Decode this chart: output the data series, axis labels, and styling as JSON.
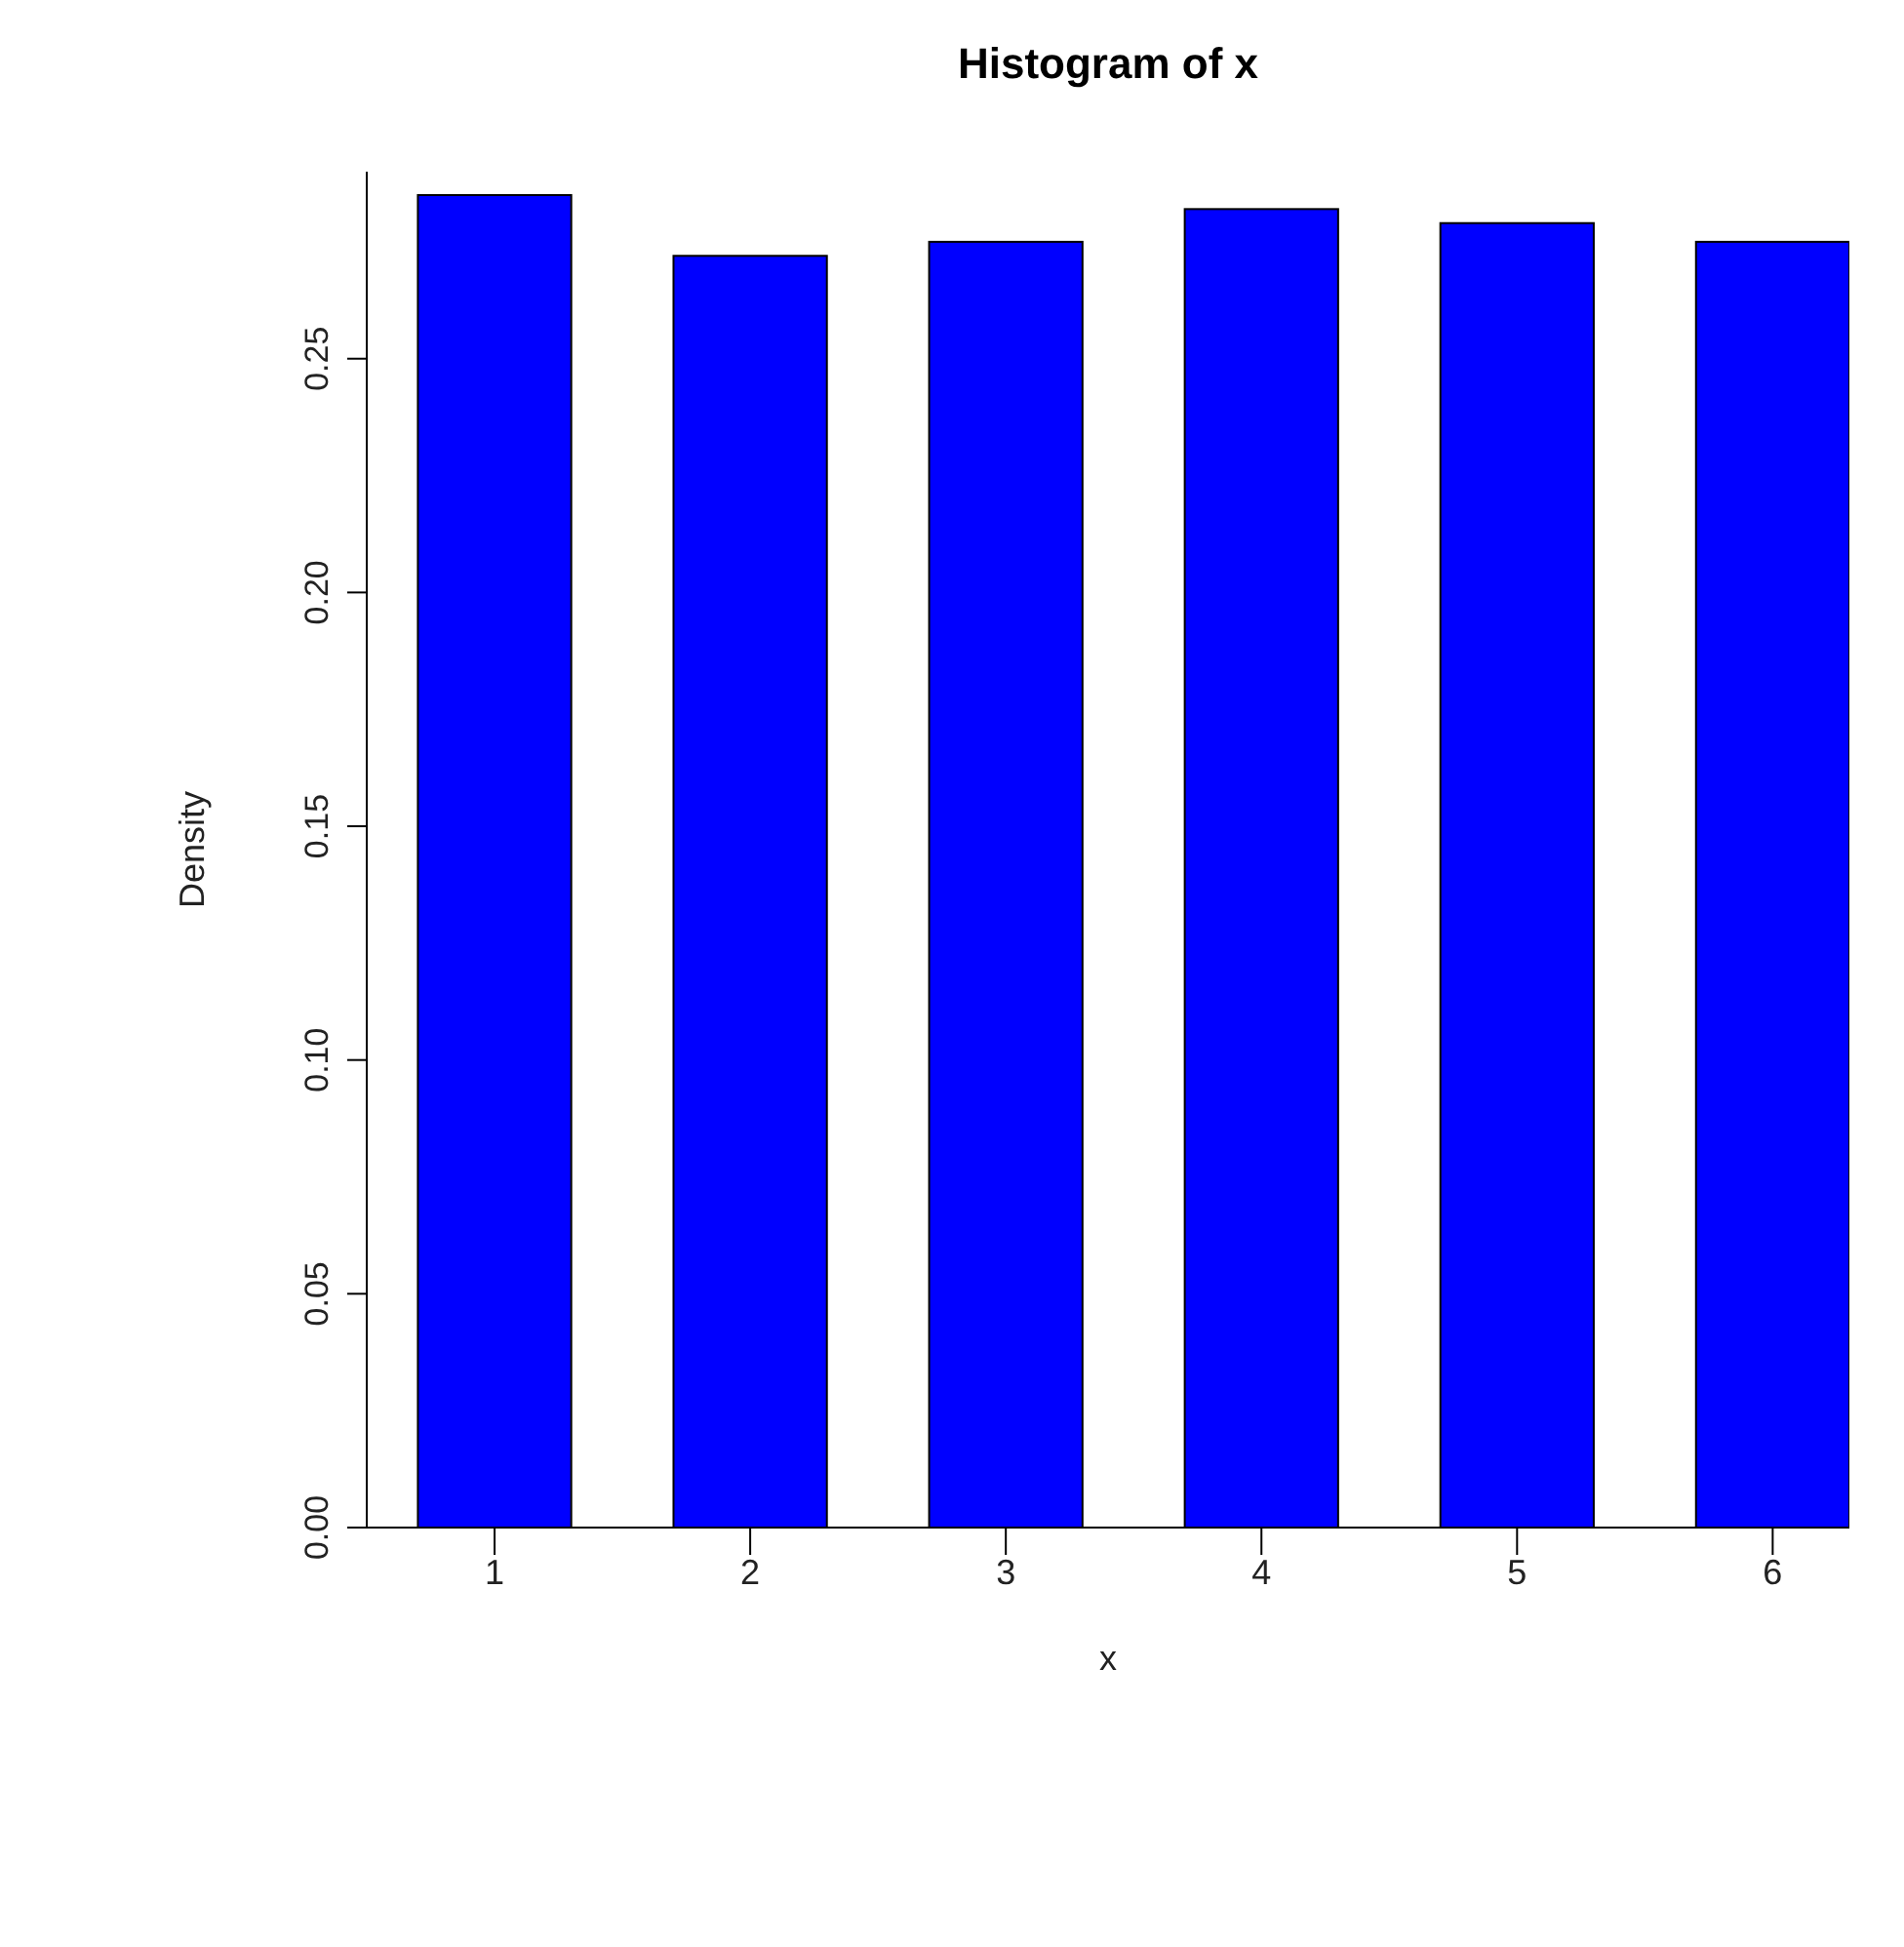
{
  "chart_data": {
    "type": "histogram",
    "title": "Histogram of x",
    "xlabel": "x",
    "ylabel": "Density",
    "bins": [
      0.7,
      1.3,
      1.7,
      2.3,
      2.7,
      3.3,
      3.7,
      4.3,
      4.7,
      5.3,
      5.7,
      6.3
    ],
    "values": [
      0.285,
      0,
      0.272,
      0,
      0.275,
      0,
      0.282,
      0,
      0.279,
      0,
      0.275
    ],
    "color": "#0000ff",
    "xlim": [
      0.5,
      6.3
    ],
    "xticks": [
      1,
      2,
      3,
      4,
      5,
      6
    ],
    "ylim": [
      0,
      0.29
    ],
    "yticks": [
      {
        "value": 0,
        "label": "0.00"
      },
      {
        "value": 0.05,
        "label": "0.05"
      },
      {
        "value": 0.1,
        "label": "0.10"
      },
      {
        "value": 0.15,
        "label": "0.15"
      },
      {
        "value": 0.2,
        "label": "0.20"
      },
      {
        "value": 0.25,
        "label": "0.25"
      }
    ],
    "grid": false,
    "legend": false
  }
}
